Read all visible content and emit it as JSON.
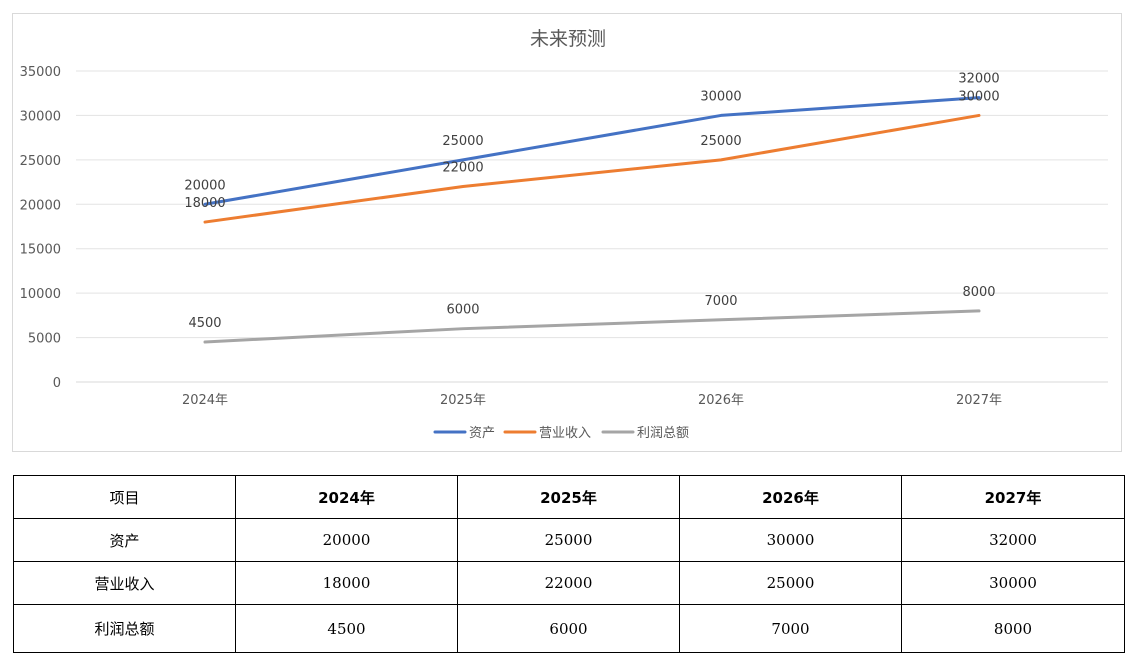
{
  "chart_data": {
    "type": "line",
    "title": "未来预测",
    "categories": [
      "2024年",
      "2025年",
      "2026年",
      "2027年"
    ],
    "yticks": [
      "0",
      "5000",
      "10000",
      "15000",
      "20000",
      "25000",
      "30000",
      "35000"
    ],
    "ylim": [
      0,
      35000
    ],
    "grid": true,
    "legend_position": "bottom",
    "series": [
      {
        "name": "资产",
        "values": [
          20000,
          25000,
          30000,
          32000
        ],
        "color": "#4472C4"
      },
      {
        "name": "营业收入",
        "values": [
          18000,
          22000,
          25000,
          30000
        ],
        "color": "#ED7D31"
      },
      {
        "name": "利润总额",
        "values": [
          4500,
          6000,
          7000,
          8000
        ],
        "color": "#A5A5A5"
      }
    ]
  },
  "table": {
    "header": [
      "项目",
      "2024年",
      "2025年",
      "2026年",
      "2027年"
    ],
    "rows": [
      {
        "label": "资产",
        "values": [
          "20000",
          "25000",
          "30000",
          "32000"
        ]
      },
      {
        "label": "营业收入",
        "values": [
          "18000",
          "22000",
          "25000",
          "30000"
        ]
      },
      {
        "label": "利润总额",
        "values": [
          "4500",
          "6000",
          "7000",
          "8000"
        ]
      }
    ]
  }
}
